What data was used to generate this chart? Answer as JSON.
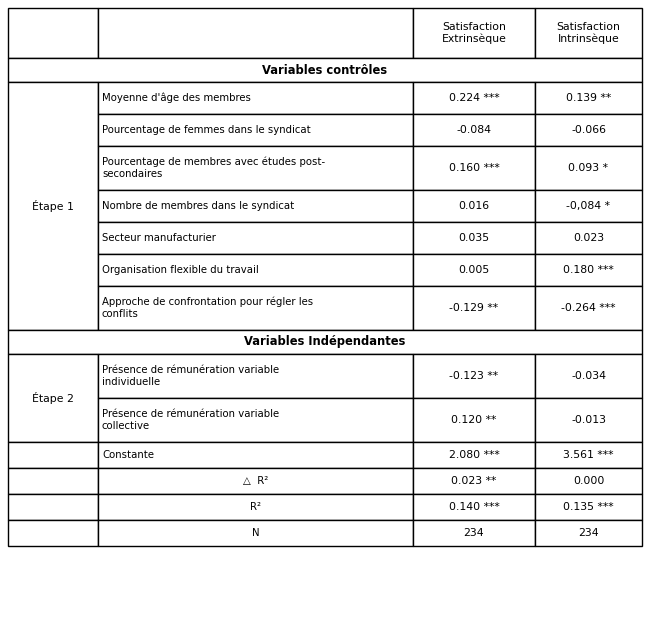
{
  "col_headers": [
    "Satisfaction\nExtrinsèque",
    "Satisfaction\nIntrinsèque"
  ],
  "section1_label": "Variables contrôles",
  "section2_label": "Variables Indépendantes",
  "etape1_label": "Étape 1",
  "etape2_label": "Étape 2",
  "rows_etape1": [
    {
      "label": "Moyenne d'âge des membres",
      "val1": "0.224 ***",
      "val2": "0.139 **",
      "multiline": false
    },
    {
      "label": "Pourcentage de femmes dans le syndicat",
      "val1": "-0.084",
      "val2": "-0.066",
      "multiline": false
    },
    {
      "label": "Pourcentage de membres avec études post-\nsecondaires",
      "val1": "0.160 ***",
      "val2": "0.093 *",
      "multiline": true
    },
    {
      "label": "Nombre de membres dans le syndicat",
      "val1": "0.016",
      "val2": "-0,084 *",
      "multiline": false
    },
    {
      "label": "Secteur manufacturier",
      "val1": "0.035",
      "val2": "0.023",
      "multiline": false
    },
    {
      "label": "Organisation flexible du travail",
      "val1": "0.005",
      "val2": "0.180 ***",
      "multiline": false
    },
    {
      "label": "Approche de confrontation pour régler les\nconflits",
      "val1": "-0.129 **",
      "val2": "-0.264 ***",
      "multiline": true
    }
  ],
  "rows_etape2": [
    {
      "label": "Présence de rémunération variable\nindividuelle",
      "val1": "-0.123 **",
      "val2": "-0.034",
      "multiline": true
    },
    {
      "label": "Présence de rémunération variable\ncollective",
      "val1": "0.120 **",
      "val2": "-0.013",
      "multiline": true
    }
  ],
  "rows_bottom": [
    {
      "label": "Constante",
      "val1": "2.080 ***",
      "val2": "3.561 ***",
      "align": "left"
    },
    {
      "label": "△  R²",
      "val1": "0.023 **",
      "val2": "0.000",
      "align": "center"
    },
    {
      "label": "R²",
      "val1": "0.140 ***",
      "val2": "0.135 ***",
      "align": "center"
    },
    {
      "label": "N",
      "val1": "234",
      "val2": "234",
      "align": "center"
    }
  ],
  "font_size": 7.8,
  "lw": 1.0
}
